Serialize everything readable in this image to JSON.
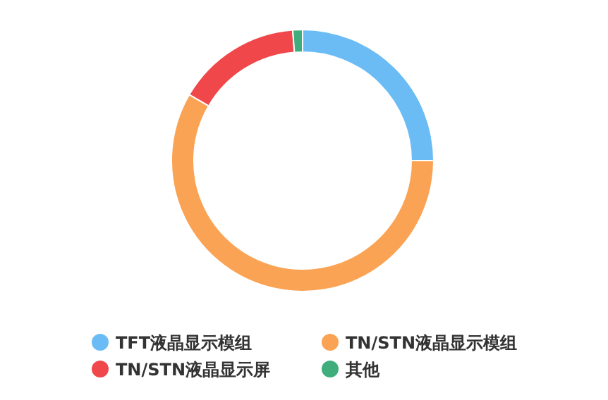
{
  "chart_data": {
    "type": "donut",
    "categories": [
      "TFT液晶显示模组",
      "TN/STN液晶显示模组",
      "TN/STN液晶显示屏",
      "其他"
    ],
    "values": [
      25,
      58.4,
      15.4,
      1.2
    ],
    "colors": [
      "#6bbcf5",
      "#fba354",
      "#ef474a",
      "#3fae7c"
    ],
    "legend": "bottom"
  }
}
